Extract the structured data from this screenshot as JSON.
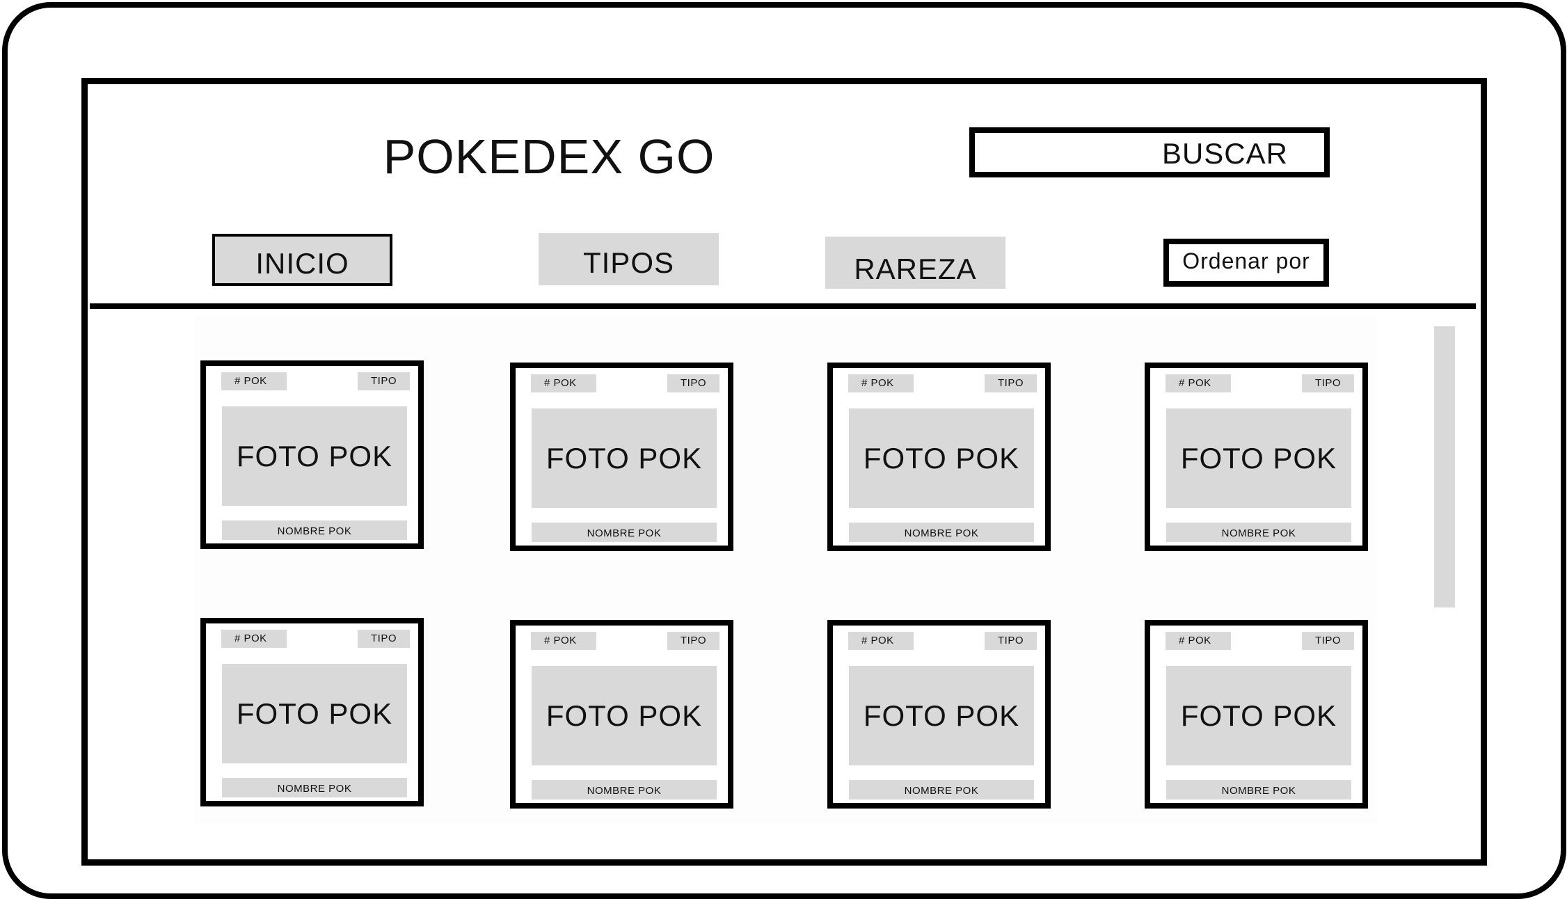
{
  "app": {
    "title": "POKEDEX GO",
    "search_label": "BUSCAR"
  },
  "nav": {
    "inicio": "INICIO",
    "tipos": "TIPOS",
    "rareza": "RAREZA",
    "sort": "Ordenar por"
  },
  "cards": [
    {
      "number": "# POK",
      "type": "TIPO",
      "photo": "FOTO POK",
      "name": "NOMBRE POK"
    },
    {
      "number": "# POK",
      "type": "TIPO",
      "photo": "FOTO POK",
      "name": "NOMBRE POK"
    },
    {
      "number": "# POK",
      "type": "TIPO",
      "photo": "FOTO POK",
      "name": "NOMBRE POK"
    },
    {
      "number": "# POK",
      "type": "TIPO",
      "photo": "FOTO POK",
      "name": "NOMBRE POK"
    },
    {
      "number": "# POK",
      "type": "TIPO",
      "photo": "FOTO POK",
      "name": "NOMBRE POK"
    },
    {
      "number": "# POK",
      "type": "TIPO",
      "photo": "FOTO POK",
      "name": "NOMBRE POK"
    },
    {
      "number": "# POK",
      "type": "TIPO",
      "photo": "FOTO POK",
      "name": "NOMBRE POK"
    },
    {
      "number": "# POK",
      "type": "TIPO",
      "photo": "FOTO POK",
      "name": "NOMBRE POK"
    }
  ],
  "colors": {
    "placeholder_gray": "#d9d9d9",
    "outline": "#000000"
  }
}
